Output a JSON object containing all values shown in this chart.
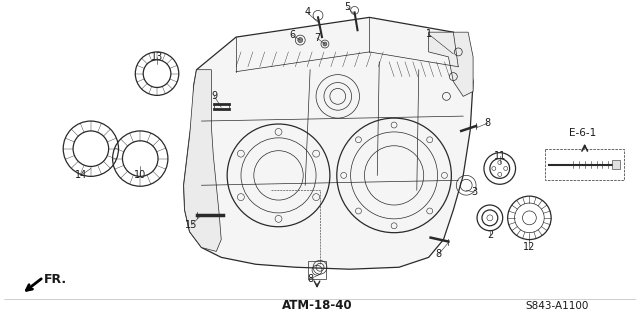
{
  "bg_color": "#ffffff",
  "fig_width": 6.4,
  "fig_height": 3.19,
  "dpi": 100,
  "bottom_left_label": "FR.",
  "bottom_center_label": "ATM-18-40",
  "bottom_right_label": "S843-A1100",
  "ref_label": "E-6-1",
  "line_color": "#2a2a2a",
  "text_color": "#1a1a1a"
}
